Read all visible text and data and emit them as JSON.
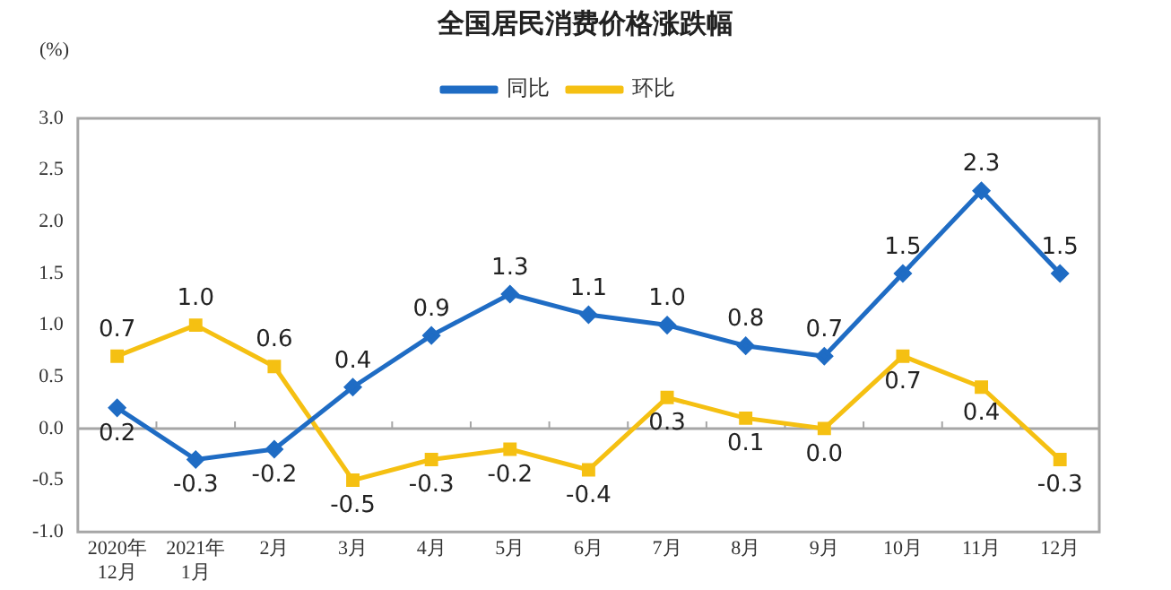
{
  "chart_data": {
    "type": "line",
    "title": "全国居民消费价格涨跌幅",
    "ylabel": "(%)",
    "categories": [
      "2020年\n12月",
      "2021年\n1月",
      "2月",
      "3月",
      "4月",
      "5月",
      "6月",
      "7月",
      "8月",
      "9月",
      "10月",
      "11月",
      "12月"
    ],
    "series": [
      {
        "name": "同比",
        "color": "#1f6cc4",
        "marker": "diamond",
        "values": [
          0.2,
          -0.3,
          -0.2,
          0.4,
          0.9,
          1.3,
          1.1,
          1.0,
          0.8,
          0.7,
          1.5,
          2.3,
          1.5
        ],
        "value_labels": [
          "0.2",
          "-0.3",
          "-0.2",
          "0.4",
          "0.9",
          "1.3",
          "1.1",
          "1.0",
          "0.8",
          "0.7",
          "1.5",
          "2.3",
          "1.5"
        ]
      },
      {
        "name": "环比",
        "color": "#f5c012",
        "marker": "square",
        "values": [
          0.7,
          1.0,
          0.6,
          -0.5,
          -0.3,
          -0.2,
          -0.4,
          0.3,
          0.1,
          0.0,
          0.7,
          0.4,
          -0.3
        ],
        "value_labels": [
          "0.7",
          "1.0",
          "0.6",
          "-0.5",
          "-0.3",
          "-0.2",
          "-0.4",
          "0.3",
          "0.1",
          "0.0",
          "0.7",
          "0.4",
          "-0.3"
        ]
      }
    ],
    "ylim": [
      -1.0,
      3.0
    ],
    "yticks": [
      {
        "value": -1,
        "label": "-1.0"
      },
      {
        "value": -0.5,
        "label": "-0.5"
      },
      {
        "value": 0,
        "label": "0.0"
      },
      {
        "value": 0.5,
        "label": "0.5"
      },
      {
        "value": 1,
        "label": "1.0"
      },
      {
        "value": 1.5,
        "label": "1.5"
      },
      {
        "value": 2,
        "label": "2.0"
      },
      {
        "value": 2.5,
        "label": "2.5"
      },
      {
        "value": 3,
        "label": "3.0"
      }
    ],
    "ref_lines": [
      {
        "axis": "y",
        "value": 0,
        "color": "#a6a6a6"
      }
    ],
    "grid": false,
    "legend": "top",
    "line_style": "solid"
  }
}
